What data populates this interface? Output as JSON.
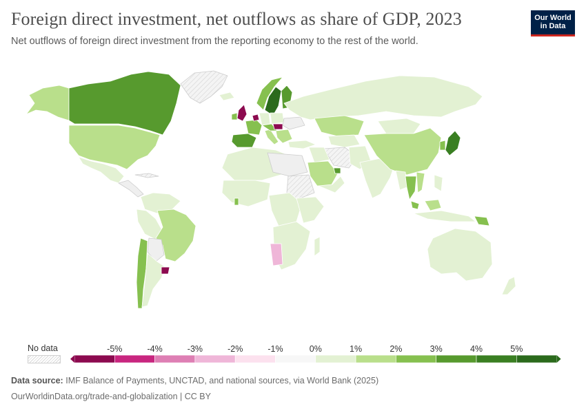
{
  "header": {
    "title": "Foreign direct investment, net outflows as share of GDP, 2023",
    "subtitle": "Net outflows of foreign direct investment from the reporting economy to the rest of the world."
  },
  "logo": {
    "line1": "Our World",
    "line2": "in Data",
    "background": "#002147",
    "accent": "#ce261e"
  },
  "legend": {
    "no_data_label": "No data",
    "tick_labels": [
      "-5%",
      "-4%",
      "-3%",
      "-2%",
      "-1%",
      "0%",
      "1%",
      "2%",
      "3%",
      "4%",
      "5%"
    ],
    "colors": [
      "#8c0a4f",
      "#c8267f",
      "#de7fb4",
      "#efb6d8",
      "#fce1ee",
      "#f7f7f7",
      "#e3f1d3",
      "#b9df8b",
      "#86c04f",
      "#579a2e",
      "#3a7f22",
      "#2b6a1c"
    ]
  },
  "colors": {
    "no_data": "#efefef",
    "neg_strong": "#8c0a4f",
    "neg_light": "#efb6d8",
    "pale_green": "#e3f1d3",
    "light_green": "#b9df8b",
    "mid_green": "#86c04f",
    "dark_green": "#579a2e",
    "darkest_green": "#2b6a1c"
  },
  "footer": {
    "source_label": "Data source:",
    "source_text": "IMF Balance of Payments, UNCTAD, and national sources, via World Bank (2025)",
    "url_text": "OurWorldinData.org/trade-and-globalization | CC BY"
  }
}
